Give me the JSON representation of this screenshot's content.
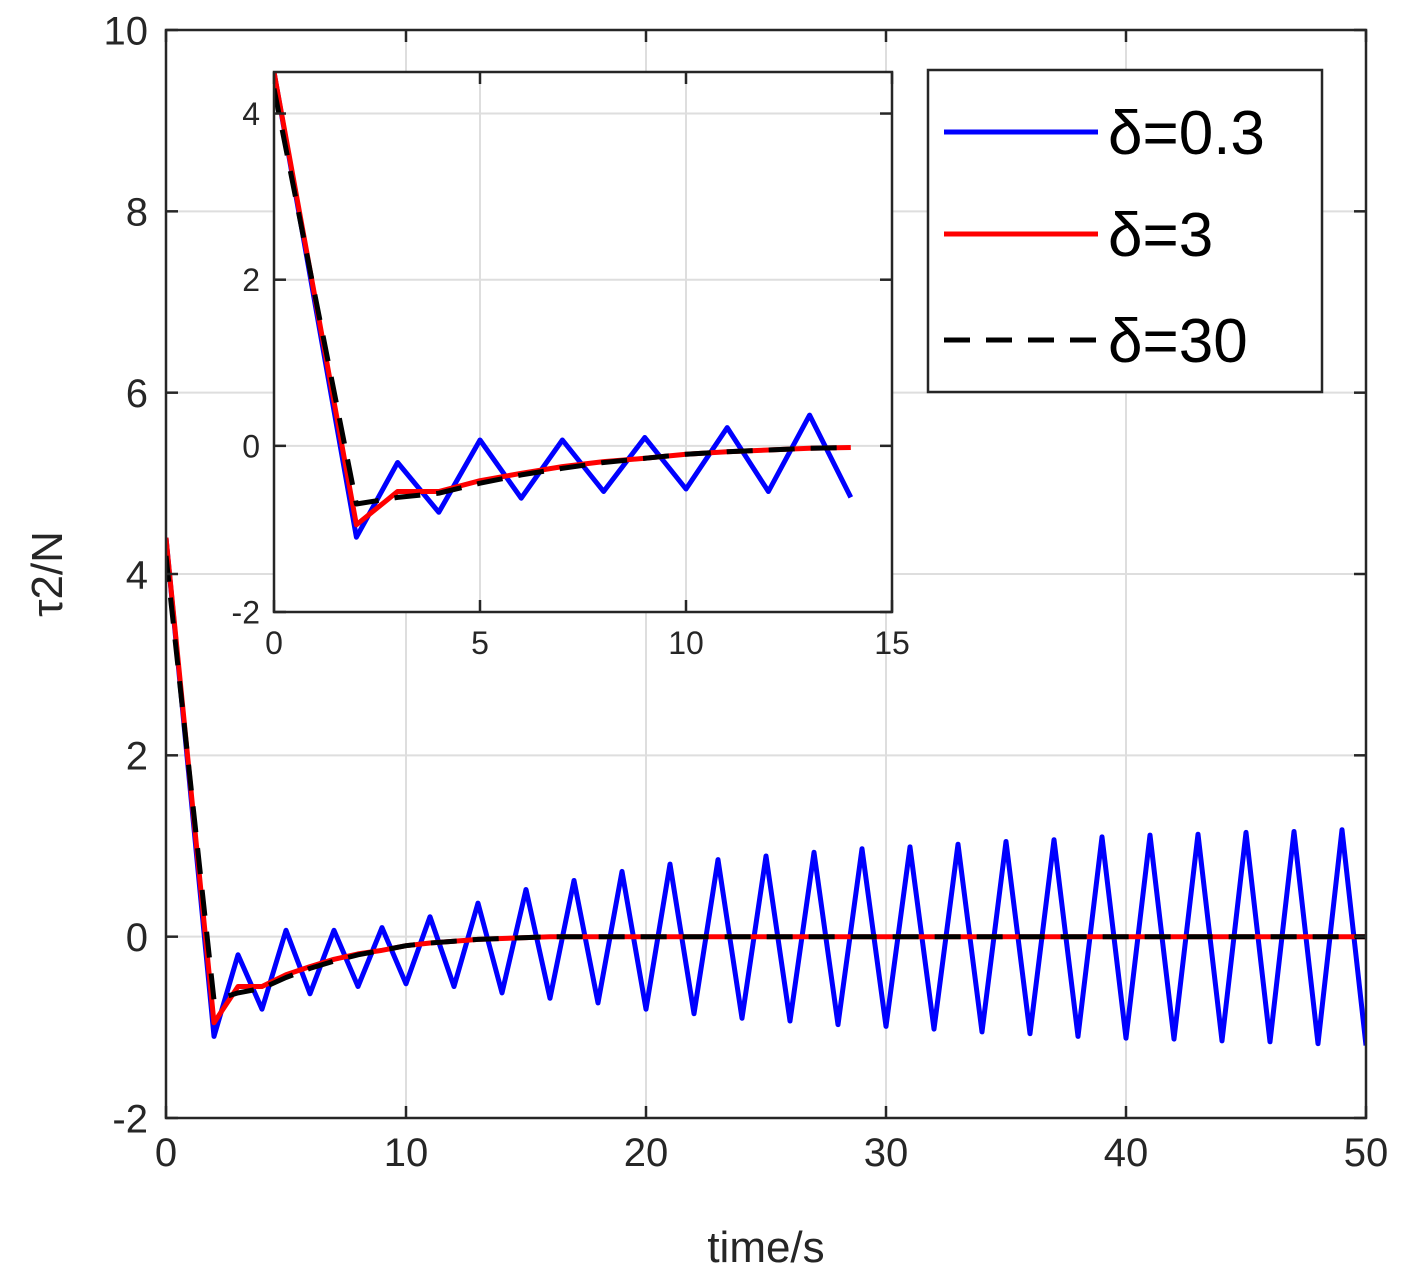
{
  "chart_data": {
    "type": "line",
    "title": "",
    "xlabel": "time/s",
    "ylabel": "τ2/N",
    "xlim": [
      0,
      50
    ],
    "ylim": [
      -2,
      10
    ],
    "xticks": [
      "0",
      "10",
      "20",
      "30",
      "40",
      "50"
    ],
    "yticks": [
      "-2",
      "0",
      "2",
      "4",
      "6",
      "8",
      "10"
    ],
    "grid": true,
    "legend_position": "top-right",
    "colors": {
      "delta_0_3": "#0000ff",
      "delta_3": "#ff0000",
      "delta_30": "#000000"
    },
    "series": [
      {
        "name": "δ=0.3",
        "style": "solid",
        "x": [
          0,
          2,
          3,
          4,
          5,
          6,
          7,
          8,
          9,
          10,
          11,
          12,
          13,
          14,
          15,
          16,
          17,
          18,
          19,
          20,
          21,
          22,
          23,
          24,
          25,
          26,
          27,
          28,
          29,
          30,
          31,
          32,
          33,
          34,
          35,
          36,
          37,
          38,
          39,
          40,
          41,
          42,
          43,
          44,
          45,
          46,
          47,
          48,
          49,
          50
        ],
        "y": [
          4.4,
          -1.1,
          -0.2,
          -0.8,
          0.07,
          -0.63,
          0.07,
          -0.55,
          0.1,
          -0.52,
          0.22,
          -0.55,
          0.37,
          -0.62,
          0.52,
          -0.68,
          0.62,
          -0.73,
          0.72,
          -0.8,
          0.8,
          -0.85,
          0.85,
          -0.9,
          0.89,
          -0.93,
          0.93,
          -0.97,
          0.97,
          -0.99,
          0.99,
          -1.02,
          1.02,
          -1.05,
          1.05,
          -1.07,
          1.07,
          -1.1,
          1.1,
          -1.12,
          1.12,
          -1.13,
          1.13,
          -1.15,
          1.15,
          -1.16,
          1.16,
          -1.18,
          1.18,
          -1.2
        ]
      },
      {
        "name": "δ=3",
        "style": "solid",
        "x": [
          0,
          2,
          3,
          4,
          5,
          6,
          7,
          8,
          9,
          10,
          11,
          12,
          13,
          14,
          15,
          16,
          20,
          25,
          30,
          35,
          40,
          45,
          50
        ],
        "y": [
          4.4,
          -0.95,
          -0.55,
          -0.55,
          -0.42,
          -0.33,
          -0.25,
          -0.19,
          -0.15,
          -0.1,
          -0.07,
          -0.05,
          -0.03,
          -0.02,
          -0.01,
          0,
          0,
          0,
          0,
          0,
          0,
          0,
          0
        ]
      },
      {
        "name": "δ=30",
        "style": "dashed",
        "x": [
          0,
          2,
          3,
          4,
          5,
          6,
          7,
          8,
          9,
          10,
          11,
          12,
          13,
          14,
          15,
          16,
          20,
          25,
          30,
          35,
          40,
          45,
          50
        ],
        "y": [
          4.2,
          -0.7,
          -0.62,
          -0.57,
          -0.45,
          -0.35,
          -0.27,
          -0.2,
          -0.15,
          -0.1,
          -0.07,
          -0.05,
          -0.03,
          -0.02,
          -0.01,
          0,
          0,
          0,
          0,
          0,
          0,
          0,
          0
        ]
      }
    ],
    "inset": {
      "xlim": [
        0,
        15
      ],
      "ylim": [
        -2,
        4.5
      ],
      "xticks": [
        "0",
        "5",
        "10",
        "15"
      ],
      "yticks": [
        "-2",
        "0",
        "2",
        "4"
      ],
      "series": [
        {
          "name": "δ=0.3",
          "x": [
            0,
            2,
            3,
            4,
            5,
            6,
            7,
            8,
            9,
            10,
            11,
            12,
            13,
            14
          ],
          "y": [
            4.5,
            -1.1,
            -0.2,
            -0.8,
            0.07,
            -0.63,
            0.07,
            -0.55,
            0.1,
            -0.52,
            0.22,
            -0.55,
            0.37,
            -0.62
          ]
        },
        {
          "name": "δ=3",
          "x": [
            0,
            2,
            3,
            4,
            5,
            6,
            7,
            8,
            9,
            10,
            11,
            12,
            13,
            14
          ],
          "y": [
            4.5,
            -0.95,
            -0.55,
            -0.55,
            -0.42,
            -0.33,
            -0.25,
            -0.19,
            -0.15,
            -0.1,
            -0.07,
            -0.05,
            -0.03,
            -0.02
          ]
        },
        {
          "name": "δ=30",
          "x": [
            0,
            2,
            3,
            4,
            5,
            6,
            7,
            8,
            9,
            10,
            11,
            12,
            13,
            14
          ],
          "y": [
            4.3,
            -0.7,
            -0.62,
            -0.57,
            -0.45,
            -0.35,
            -0.27,
            -0.2,
            -0.15,
            -0.1,
            -0.07,
            -0.05,
            -0.03,
            -0.02
          ]
        }
      ]
    }
  }
}
